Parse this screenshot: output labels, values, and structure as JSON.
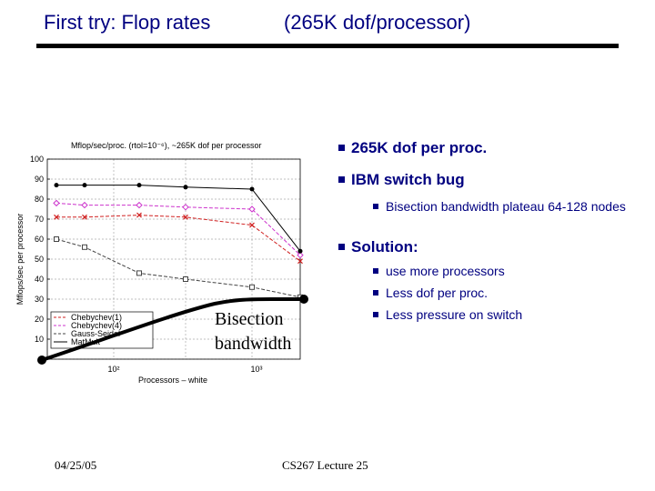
{
  "slide": {
    "title_left": "First try: Flop rates",
    "title_right": "(265K dof/processor)",
    "bullets": {
      "b1": "265K dof per proc.",
      "b2": "IBM switch bug",
      "b2_sub": "Bisection bandwidth plateau 64-128 nodes",
      "b3": "Solution:",
      "b3_sub": [
        "use more processors",
        "Less dof per proc.",
        "Less pressure on switch"
      ]
    },
    "annotation_label": "Bisection bandwidth",
    "footer_date": "04/25/05",
    "footer_lecture": "CS267 Lecture 25"
  },
  "chart_data": {
    "type": "line",
    "title": "Mflop/sec/proc. (rtol=10⁻⁶), ~265K dof per processor",
    "xlabel": "Processors – white",
    "ylabel": "Mflops/sec per processor",
    "ylim": [
      0,
      100
    ],
    "yticks": [
      0,
      10,
      20,
      30,
      40,
      50,
      60,
      70,
      80,
      90,
      100
    ],
    "ytick_labels": [
      "0",
      "10",
      "20",
      "30",
      "40",
      "50",
      "60",
      "70",
      "80",
      "90",
      "100"
    ],
    "xtick_labels": [
      "10²",
      "10³"
    ],
    "grid": true,
    "legend_position": "lower-left",
    "x": [
      1,
      2,
      3,
      4,
      5,
      6
    ],
    "series": [
      {
        "name": "Chebychev(1)",
        "values": [
          71,
          71,
          72,
          71,
          67,
          49
        ],
        "color": "#d02020",
        "marker": "x"
      },
      {
        "name": "Chebychev(4)",
        "values": [
          78,
          77,
          77,
          76,
          75,
          52
        ],
        "color": "#cc33cc",
        "marker": "diamond"
      },
      {
        "name": "Gauss-Seidel",
        "values": [
          60,
          56,
          43,
          40,
          36,
          31
        ],
        "color": "#444444",
        "marker": "square"
      },
      {
        "name": "MatMult",
        "values": [
          87,
          87,
          87,
          86,
          85,
          54
        ],
        "color": "#000000",
        "marker": "dot"
      }
    ],
    "overlay_curve_color": "#000000"
  }
}
